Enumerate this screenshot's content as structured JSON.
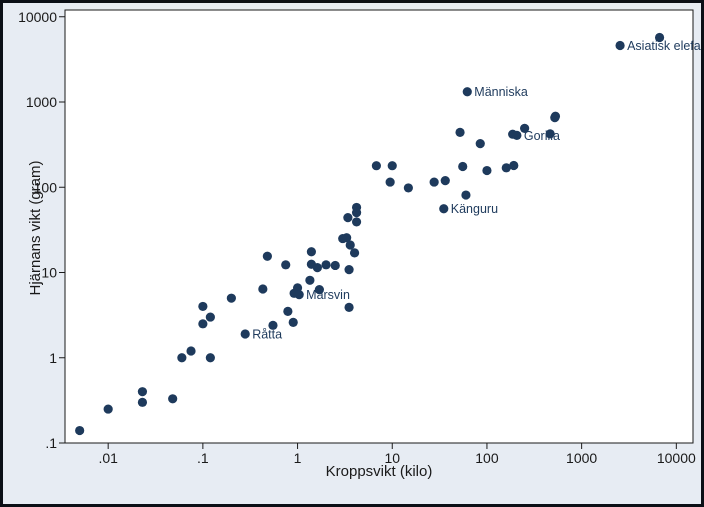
{
  "chart_data": {
    "type": "scatter",
    "xscale": "log",
    "yscale": "log",
    "xlabel": "Kroppsvikt (kilo)",
    "ylabel": "Hjärnans vikt (gram)",
    "xlim": [
      0.0035,
      15000
    ],
    "ylim": [
      0.1,
      12000
    ],
    "xticks": [
      {
        "v": 0.01,
        "label": ".01"
      },
      {
        "v": 0.1,
        "label": ".1"
      },
      {
        "v": 1,
        "label": "1"
      },
      {
        "v": 10,
        "label": "10"
      },
      {
        "v": 100,
        "label": "100"
      },
      {
        "v": 1000,
        "label": "1000"
      },
      {
        "v": 10000,
        "label": "10000"
      }
    ],
    "yticks": [
      {
        "v": 0.1,
        "label": ".1"
      },
      {
        "v": 1,
        "label": "1"
      },
      {
        "v": 10,
        "label": "10"
      },
      {
        "v": 100,
        "label": "100"
      },
      {
        "v": 1000,
        "label": "1000"
      },
      {
        "v": 10000,
        "label": "10000"
      }
    ],
    "marker_color": "#1e3a5c",
    "label_color": "#1e3a5c",
    "background": "#e7ecf3",
    "points": [
      {
        "x": 0.005,
        "y": 0.14
      },
      {
        "x": 0.01,
        "y": 0.25
      },
      {
        "x": 0.023,
        "y": 0.3
      },
      {
        "x": 0.023,
        "y": 0.4
      },
      {
        "x": 0.048,
        "y": 0.33
      },
      {
        "x": 0.06,
        "y": 1.0
      },
      {
        "x": 0.075,
        "y": 1.2
      },
      {
        "x": 0.1,
        "y": 4.0
      },
      {
        "x": 0.1,
        "y": 2.5
      },
      {
        "x": 0.12,
        "y": 3.0
      },
      {
        "x": 0.12,
        "y": 1.0
      },
      {
        "x": 0.2,
        "y": 5.0
      },
      {
        "x": 0.28,
        "y": 1.9,
        "label": "Råtta"
      },
      {
        "x": 0.43,
        "y": 6.4
      },
      {
        "x": 0.48,
        "y": 15.5
      },
      {
        "x": 0.55,
        "y": 2.4
      },
      {
        "x": 0.75,
        "y": 12.3
      },
      {
        "x": 0.79,
        "y": 3.5
      },
      {
        "x": 0.9,
        "y": 2.6
      },
      {
        "x": 0.92,
        "y": 5.7
      },
      {
        "x": 1.0,
        "y": 6.6
      },
      {
        "x": 1.04,
        "y": 5.5,
        "label": "Marsvin"
      },
      {
        "x": 1.35,
        "y": 8.1
      },
      {
        "x": 1.4,
        "y": 12.5
      },
      {
        "x": 1.4,
        "y": 17.5
      },
      {
        "x": 1.62,
        "y": 11.4
      },
      {
        "x": 1.7,
        "y": 6.3
      },
      {
        "x": 2.0,
        "y": 12.3
      },
      {
        "x": 2.5,
        "y": 12.1
      },
      {
        "x": 3.0,
        "y": 25.0
      },
      {
        "x": 3.3,
        "y": 25.6
      },
      {
        "x": 3.4,
        "y": 44.0
      },
      {
        "x": 3.5,
        "y": 10.8
      },
      {
        "x": 3.5,
        "y": 3.9
      },
      {
        "x": 3.6,
        "y": 21.0
      },
      {
        "x": 4.0,
        "y": 17.0
      },
      {
        "x": 4.2,
        "y": 39.2
      },
      {
        "x": 4.2,
        "y": 50.4
      },
      {
        "x": 4.2,
        "y": 58.0
      },
      {
        "x": 6.8,
        "y": 179
      },
      {
        "x": 9.5,
        "y": 115
      },
      {
        "x": 10.0,
        "y": 179
      },
      {
        "x": 14.8,
        "y": 98.2
      },
      {
        "x": 27.7,
        "y": 115
      },
      {
        "x": 35.0,
        "y": 56.0,
        "label": "Känguru"
      },
      {
        "x": 36.3,
        "y": 119.5
      },
      {
        "x": 52.0,
        "y": 440
      },
      {
        "x": 55.5,
        "y": 175
      },
      {
        "x": 60.0,
        "y": 81.0
      },
      {
        "x": 62.0,
        "y": 1320,
        "label": "Människa"
      },
      {
        "x": 85.0,
        "y": 325
      },
      {
        "x": 100.0,
        "y": 157
      },
      {
        "x": 160.0,
        "y": 169
      },
      {
        "x": 187.0,
        "y": 419
      },
      {
        "x": 192.0,
        "y": 180
      },
      {
        "x": 207.0,
        "y": 406,
        "label": "Gorilla"
      },
      {
        "x": 250.0,
        "y": 490
      },
      {
        "x": 465.0,
        "y": 423
      },
      {
        "x": 521.0,
        "y": 655
      },
      {
        "x": 529.0,
        "y": 680
      },
      {
        "x": 2547.0,
        "y": 4603,
        "label": "Asiatisk elefant"
      },
      {
        "x": 6654.0,
        "y": 5712
      }
    ]
  }
}
